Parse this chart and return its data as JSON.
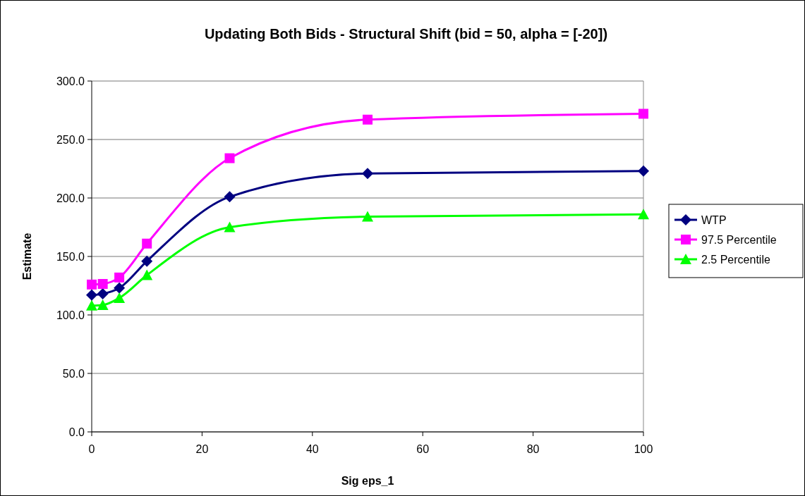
{
  "chart_data": {
    "type": "line",
    "title": "Updating Both Bids - Structural Shift (bid = 50, alpha = [-20])",
    "xlabel": "Sig eps_1",
    "ylabel": "Estimate",
    "x": [
      0,
      2,
      5,
      10,
      25,
      50,
      100
    ],
    "series": [
      {
        "name": "WTP",
        "color": "#000080",
        "marker": "diamond",
        "values": [
          117,
          118,
          123,
          146,
          201,
          221,
          223
        ]
      },
      {
        "name": "97.5 Percentile",
        "color": "#ff00ff",
        "marker": "square",
        "values": [
          126,
          126.5,
          132,
          161,
          234,
          267,
          272
        ]
      },
      {
        "name": "2.5 Percentile",
        "color": "#00ff00",
        "marker": "triangle",
        "values": [
          108,
          108.5,
          114.5,
          134,
          175,
          184,
          186
        ]
      }
    ],
    "xlim": [
      0,
      100
    ],
    "xticks": [
      0,
      20,
      40,
      60,
      80,
      100
    ],
    "ylim": [
      0,
      300
    ],
    "yticks": [
      {
        "value": 0,
        "label": "0.0"
      },
      {
        "value": 50,
        "label": "50.0"
      },
      {
        "value": 100,
        "label": "100.0"
      },
      {
        "value": 150,
        "label": "150.0"
      },
      {
        "value": 200,
        "label": "200.0"
      },
      {
        "value": 250,
        "label": "250.0"
      },
      {
        "value": 300,
        "label": "300.0"
      }
    ],
    "grid": "y",
    "legend": "right",
    "line_style": "solid"
  }
}
